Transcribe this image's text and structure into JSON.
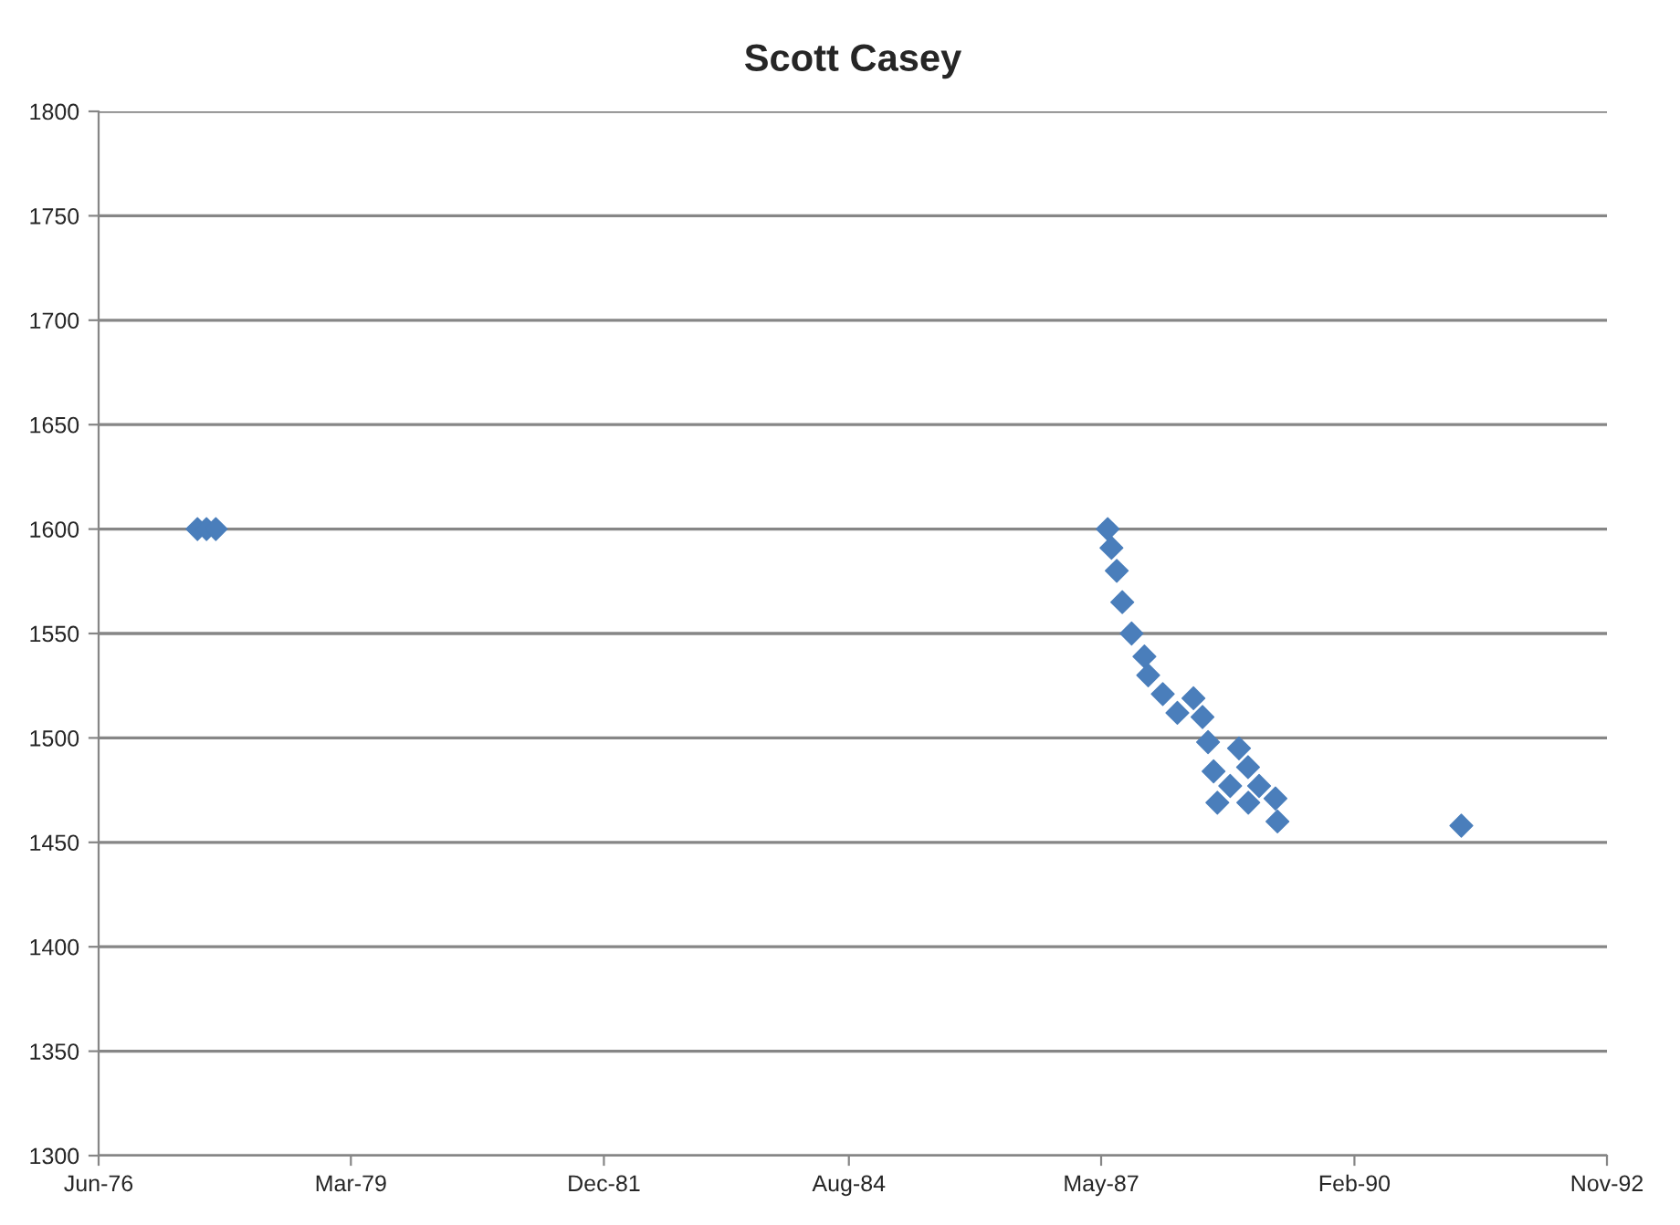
{
  "chart_data": {
    "type": "scatter",
    "title": "Scott Casey",
    "x": [
      "1977-07-13",
      "1977-08-18",
      "1977-09-24",
      "1987-06-10",
      "1987-06-25",
      "1987-07-16",
      "1987-08-07",
      "1987-09-13",
      "1987-11-03",
      "1987-11-18",
      "1988-01-15",
      "1988-03-13",
      "1988-05-16",
      "1988-06-21",
      "1988-07-13",
      "1988-08-04",
      "1988-08-19",
      "1988-10-09",
      "1988-11-13",
      "1988-12-19",
      "1988-12-20",
      "1989-02-01",
      "1989-04-07",
      "1989-04-15",
      "1991-04-16"
    ],
    "series": [
      {
        "color": "#4a7ebb",
        "values": [
          1600,
          1600,
          1600,
          1600,
          1591,
          1580,
          1565,
          1550,
          1539,
          1530,
          1521,
          1512,
          1519,
          1510,
          1498,
          1484,
          1469,
          1477,
          1495,
          1486,
          1469,
          1477,
          1471,
          1460,
          1458
        ]
      }
    ],
    "marker": "diamond",
    "grid": "y",
    "xlim": [
      "1976-06-15",
      "1992-11-15"
    ],
    "xticks": [
      {
        "value": "1976-06-15",
        "label": "Jun-76"
      },
      {
        "value": "1979-03-15",
        "label": "Mar-79"
      },
      {
        "value": "1981-12-15",
        "label": "Dec-81"
      },
      {
        "value": "1984-08-15",
        "label": "Aug-84"
      },
      {
        "value": "1987-05-15",
        "label": "May-87"
      },
      {
        "value": "1990-02-15",
        "label": "Feb-90"
      },
      {
        "value": "1992-11-15",
        "label": "Nov-92"
      }
    ],
    "ylim": [
      1300,
      1800
    ],
    "yticks": [
      1300,
      1350,
      1400,
      1450,
      1500,
      1550,
      1600,
      1650,
      1700,
      1750,
      1800
    ]
  }
}
